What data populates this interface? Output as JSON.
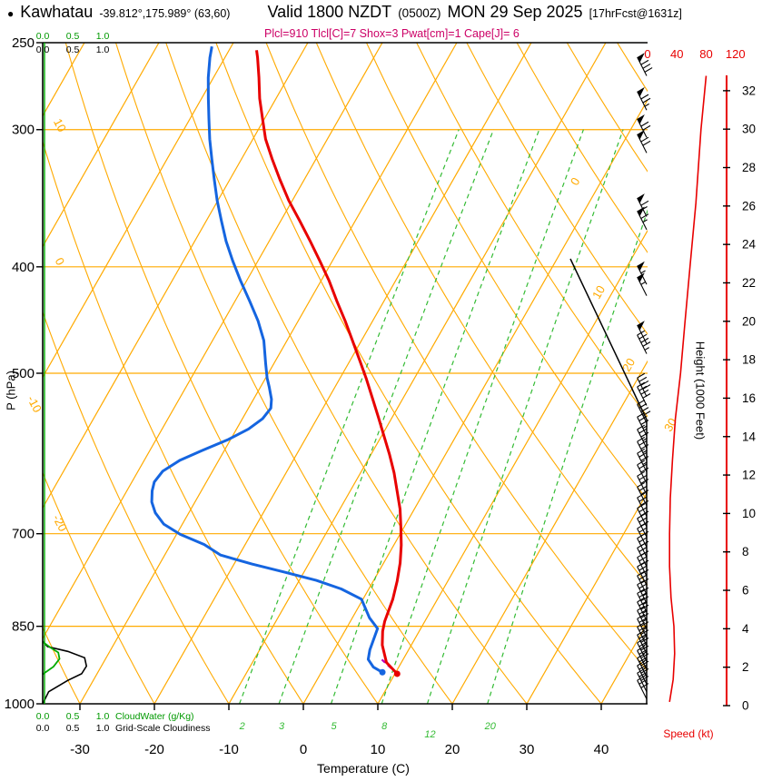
{
  "header": {
    "marker": "●",
    "station": "Kawhatau",
    "coords": "-39.812°,175.989° (63,60)",
    "valid": "Valid 1800 NZDT",
    "valid_time_z": "(0500Z)",
    "valid_date": "MON 29 Sep 2025",
    "forecast_ref": "[17hrFcst@1631z]",
    "params": "Plcl=910 Tlcl[C]=7 Shox=3 Pwat[cm]=1 Cape[J]= 6"
  },
  "axis_titles": {
    "pressure": "P (hPa)",
    "temperature": "Temperature (C)",
    "height": "Height (1000 Feet)",
    "speed": "Speed (kt)"
  },
  "scales": {
    "ticks": [
      "0.0",
      "0.5",
      "1.0"
    ],
    "cloudwater_label": "CloudWater (g/Kg)",
    "cloudiness_label": "Grid-Scale Cloudiness"
  },
  "chart_data": {
    "type": "line",
    "title": "Kawhatau -39.812°,175.989° (63,60) Valid 1800 NZDT (0500Z) MON 29 Sep 2025 [17hrFcst@1631z]",
    "xlabel": "Temperature (C)",
    "ylabel": "P (hPa)",
    "y2label": "Height (1000 Feet)",
    "pressure_range_hpa": [
      250,
      1000
    ],
    "pressure_ticks": [
      250,
      300,
      400,
      500,
      700,
      850,
      1000
    ],
    "temperature_ticks": [
      -30,
      -20,
      -10,
      0,
      10,
      20,
      30,
      40
    ],
    "height_ticks_kft": [
      0,
      2,
      4,
      6,
      8,
      10,
      12,
      14,
      16,
      18,
      20,
      22,
      24,
      26,
      28,
      30,
      32
    ],
    "speed_ticks_kt": [
      0,
      40,
      80,
      120
    ],
    "isobar_lines_hpa": [
      300,
      400,
      500,
      700,
      850
    ],
    "isotherm_step_c": 10,
    "isotherm_range_c": [
      -90,
      40
    ],
    "dry_adiabats_theta_c": {
      "min": -60,
      "max": 200,
      "step": 10
    },
    "adiabat_edge_labels": [
      10,
      0,
      -10,
      -20
    ],
    "isotherm_edge_labels": [
      0,
      10,
      20,
      30
    ],
    "mixing_ratio_gkg": [
      2,
      3,
      5,
      8,
      12,
      20
    ],
    "temperature_profile": [
      [
        939,
        10.3
      ],
      [
        917,
        8.0
      ],
      [
        884,
        6.1
      ],
      [
        859,
        5.1
      ],
      [
        841,
        4.6
      ],
      [
        803,
        4.0
      ],
      [
        773,
        3.2
      ],
      [
        744,
        2.2
      ],
      [
        717,
        1.0
      ],
      [
        691,
        -0.4
      ],
      [
        665,
        -1.9
      ],
      [
        640,
        -3.7
      ],
      [
        616,
        -5.5
      ],
      [
        593,
        -7.5
      ],
      [
        570,
        -9.7
      ],
      [
        548,
        -11.9
      ],
      [
        527,
        -14.1
      ],
      [
        506,
        -16.4
      ],
      [
        486,
        -18.8
      ],
      [
        467,
        -21.2
      ],
      [
        448,
        -23.7
      ],
      [
        430,
        -26.3
      ],
      [
        412,
        -28.9
      ],
      [
        395,
        -31.7
      ],
      [
        379,
        -34.5
      ],
      [
        363,
        -37.5
      ],
      [
        348,
        -40.5
      ],
      [
        333,
        -43.3
      ],
      [
        319,
        -45.9
      ],
      [
        306,
        -48.3
      ],
      [
        293,
        -50.3
      ],
      [
        281,
        -52.2
      ],
      [
        269,
        -53.9
      ],
      [
        258,
        -55.6
      ],
      [
        254,
        -56.3
      ]
    ],
    "dewpoint_profile": [
      [
        936,
        8.2
      ],
      [
        926,
        6.6
      ],
      [
        911,
        5.3
      ],
      [
        893,
        4.8
      ],
      [
        854,
        4.2
      ],
      [
        835,
        2.3
      ],
      [
        803,
        -0.2
      ],
      [
        786,
        -3.7
      ],
      [
        772,
        -7.7
      ],
      [
        759,
        -12.5
      ],
      [
        746,
        -17.6
      ],
      [
        732,
        -22.5
      ],
      [
        716,
        -25.5
      ],
      [
        701,
        -29.5
      ],
      [
        686,
        -32.5
      ],
      [
        670,
        -34.5
      ],
      [
        655,
        -35.8
      ],
      [
        640,
        -36.6
      ],
      [
        628,
        -37.0
      ],
      [
        614,
        -36.7
      ],
      [
        600,
        -35.2
      ],
      [
        588,
        -33.0
      ],
      [
        575,
        -30.4
      ],
      [
        562,
        -28.4
      ],
      [
        550,
        -27.3
      ],
      [
        538,
        -27.0
      ],
      [
        528,
        -27.6
      ],
      [
        515,
        -28.8
      ],
      [
        505,
        -29.8
      ],
      [
        490,
        -31.1
      ],
      [
        467,
        -33.1
      ],
      [
        448,
        -35.4
      ],
      [
        430,
        -38.0
      ],
      [
        412,
        -40.8
      ],
      [
        395,
        -43.4
      ],
      [
        379,
        -45.8
      ],
      [
        363,
        -48.0
      ],
      [
        348,
        -50.1
      ],
      [
        333,
        -52.1
      ],
      [
        319,
        -54.0
      ],
      [
        306,
        -55.8
      ],
      [
        293,
        -57.5
      ],
      [
        281,
        -59.1
      ],
      [
        269,
        -60.7
      ],
      [
        258,
        -62.0
      ],
      [
        252,
        -62.6
      ]
    ],
    "parcel_segment": [
      [
        939,
        10.3
      ],
      [
        910,
        7.0
      ]
    ],
    "wind_speed_profile_kt": [
      [
        996,
        30
      ],
      [
        950,
        35
      ],
      [
        900,
        37
      ],
      [
        850,
        36
      ],
      [
        800,
        32
      ],
      [
        750,
        30
      ],
      [
        700,
        30
      ],
      [
        650,
        31
      ],
      [
        600,
        34
      ],
      [
        550,
        38
      ],
      [
        500,
        45
      ],
      [
        450,
        51
      ],
      [
        400,
        58
      ],
      [
        350,
        66
      ],
      [
        300,
        73
      ],
      [
        268,
        80
      ]
    ],
    "barb_levels_hpa": [
      990,
      975,
      960,
      945,
      930,
      915,
      900,
      885,
      870,
      855,
      840,
      825,
      810,
      795,
      780,
      765,
      750,
      735,
      720,
      705,
      690,
      675,
      660,
      645,
      630,
      615,
      600,
      585,
      570,
      555,
      535,
      525,
      480,
      470,
      425,
      415,
      370,
      360,
      315,
      305,
      288,
      268
    ],
    "cloud_water_gkg": [
      [
        940,
        0.0
      ],
      [
        925,
        0.18
      ],
      [
        910,
        0.28
      ],
      [
        898,
        0.26
      ],
      [
        888,
        0.12
      ],
      [
        878,
        0.0
      ]
    ],
    "cloud_fraction": [
      [
        1000,
        0.0
      ],
      [
        975,
        0.1
      ],
      [
        952,
        0.42
      ],
      [
        939,
        0.65
      ],
      [
        924,
        0.73
      ],
      [
        908,
        0.7
      ],
      [
        896,
        0.42
      ],
      [
        887,
        0.08
      ],
      [
        877,
        0.0
      ]
    ],
    "colors": {
      "grid": "#ffaa00",
      "mixing": "#33bb33",
      "cloudwater": "#00aa00",
      "temperature": "#e80000",
      "dewpoint": "#1565e0",
      "parcel": "#bb00bb",
      "params": "#cc0066",
      "barbs": "#000000"
    }
  }
}
